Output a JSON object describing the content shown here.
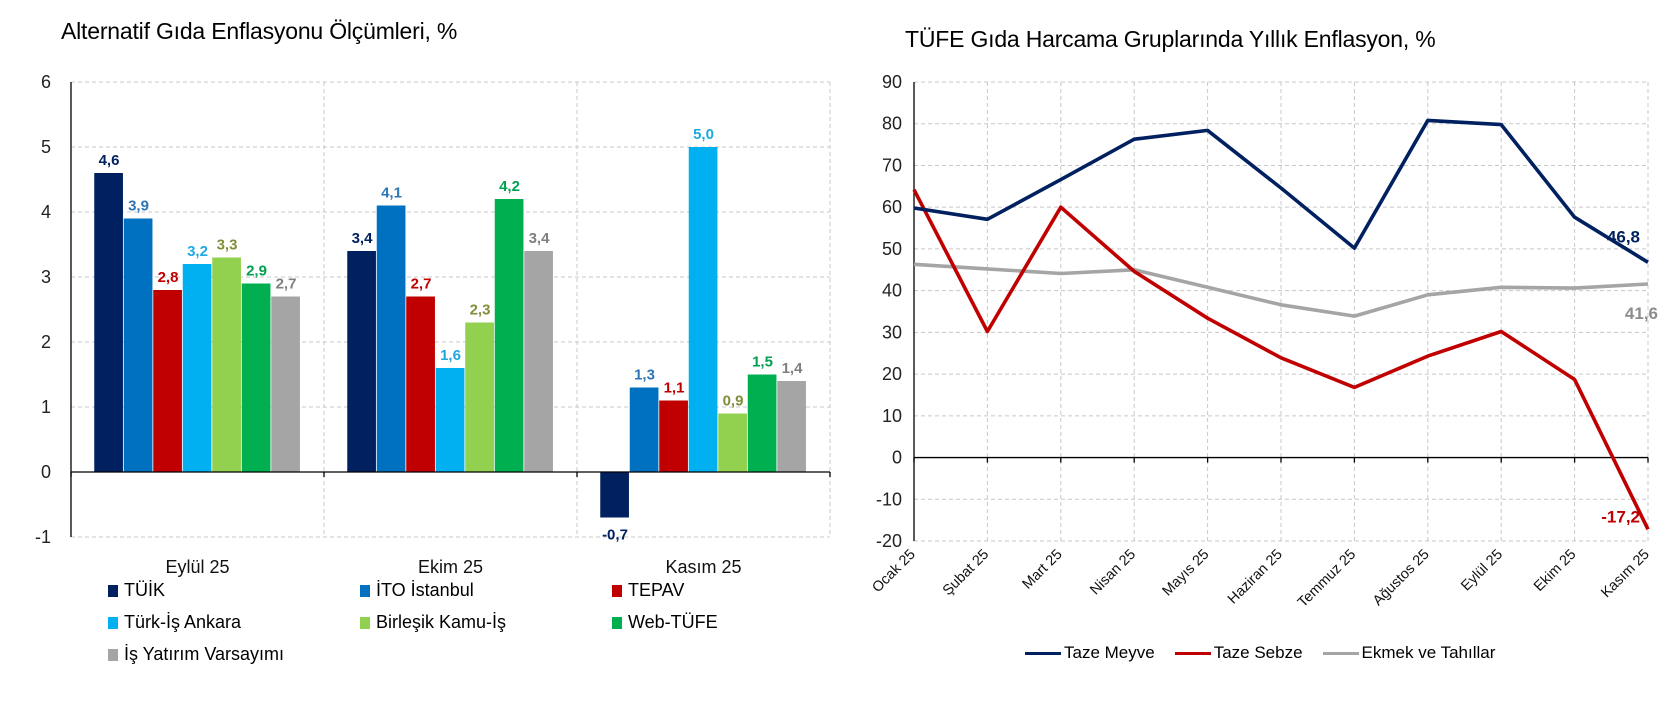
{
  "chart_data": [
    {
      "type": "bar",
      "title": "Alternatif Gıda Enflasyonu Ölçümleri, %",
      "xlabel": "",
      "ylabel": "",
      "ylim": [
        -1,
        6
      ],
      "yticks": [
        "-1",
        "0",
        "1",
        "2",
        "3",
        "4",
        "5",
        "6"
      ],
      "yticks_values": [
        -1,
        0,
        1,
        2,
        3,
        4,
        5,
        6
      ],
      "grid": true,
      "legend_position": "bottom",
      "categories": [
        "Eylül 25",
        "Ekim 25",
        "Kasım 25"
      ],
      "series": [
        {
          "name": "TÜİK",
          "color": "#002060",
          "values": [
            4.6,
            3.4,
            -0.7
          ],
          "labels": [
            "4,6",
            "3,4",
            "-0,7"
          ],
          "label_color": "#002060"
        },
        {
          "name": "İTO İstanbul",
          "color": "#0070C0",
          "values": [
            3.9,
            4.1,
            1.3
          ],
          "labels": [
            "3,9",
            "4,1",
            "1,3"
          ],
          "label_color": "#2E75B6"
        },
        {
          "name": "TEPAV",
          "color": "#C00000",
          "values": [
            2.8,
            2.7,
            1.1
          ],
          "labels": [
            "2,8",
            "2,7",
            "1,1"
          ],
          "label_color": "#C00000"
        },
        {
          "name": "Türk-İş Ankara",
          "color": "#00B0F0",
          "values": [
            3.2,
            1.6,
            5.0
          ],
          "labels": [
            "3,2",
            "1,6",
            "5,0"
          ],
          "label_color": "#1FA8E0"
        },
        {
          "name": "Birleşik Kamu-İş",
          "color": "#92D050",
          "values": [
            3.3,
            2.3,
            0.9
          ],
          "labels": [
            "3,3",
            "2,3",
            "0,9"
          ],
          "label_color": "#7F8F3A"
        },
        {
          "name": "Web-TÜFE",
          "color": "#00B050",
          "values": [
            2.9,
            4.2,
            1.5
          ],
          "labels": [
            "2,9",
            "4,2",
            "1,5"
          ],
          "label_color": "#00A050"
        },
        {
          "name": "İş Yatırım Varsayımı",
          "color": "#A5A5A5",
          "values": [
            2.7,
            3.4,
            1.4
          ],
          "labels": [
            "2,7",
            "3,4",
            "1,4"
          ],
          "label_color": "#7F7F7F"
        }
      ]
    },
    {
      "type": "line",
      "title": "TÜFE Gıda Harcama Gruplarında Yıllık Enflasyon, %",
      "xlabel": "",
      "ylabel": "",
      "ylim": [
        -20,
        90
      ],
      "yticks": [
        "-20",
        "-10",
        "0",
        "10",
        "20",
        "30",
        "40",
        "50",
        "60",
        "70",
        "80",
        "90"
      ],
      "yticks_values": [
        -20,
        -10,
        0,
        10,
        20,
        30,
        40,
        50,
        60,
        70,
        80,
        90
      ],
      "grid": true,
      "legend_position": "bottom",
      "x": [
        "Ocak 25",
        "Şubat 25",
        "Mart 25",
        "Nisan 25",
        "Mayıs 25",
        "Haziran 25",
        "Temmuz 25",
        "Ağustos 25",
        "Eylül 25",
        "Ekim 25",
        "Kasım 25"
      ],
      "series": [
        {
          "name": "Taze Meyve",
          "color": "#002060",
          "values": [
            59.8,
            57.1,
            66.6,
            76.3,
            78.4,
            64.6,
            50.2,
            80.8,
            79.8,
            57.6,
            46.8
          ],
          "end_label": "46,8"
        },
        {
          "name": "Taze Sebze",
          "color": "#C00000",
          "values": [
            64.2,
            30.2,
            60.0,
            44.6,
            33.4,
            23.9,
            16.8,
            24.3,
            30.2,
            18.7,
            -17.2
          ],
          "end_label": "-17,2"
        },
        {
          "name": "Ekmek ve Tahıllar",
          "color": "#A5A5A5",
          "values": [
            46.3,
            45.2,
            44.1,
            45.0,
            40.8,
            36.6,
            33.9,
            39.0,
            40.8,
            40.6,
            41.6
          ],
          "end_label": "41,6"
        }
      ]
    }
  ]
}
